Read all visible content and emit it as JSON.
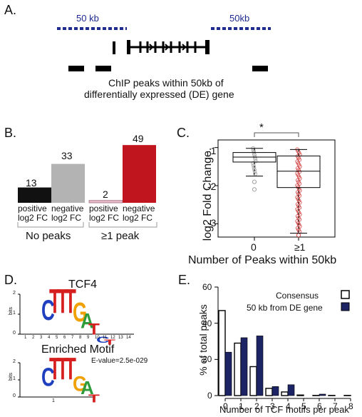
{
  "panels": {
    "a": {
      "letter": "A.",
      "left_window_label": "50 kb",
      "right_window_label": "50kb",
      "caption_line1": "ChIP peaks within 50kb of",
      "caption_line2": "differentially expressed (DE) gene"
    },
    "b": {
      "letter": "B.",
      "chart_data": {
        "type": "bar",
        "categories": [
          "positive log2 FC",
          "negative log2 FC",
          "positive log2 FC",
          "negative log2 FC"
        ],
        "values": [
          13,
          33,
          2,
          49
        ],
        "colors": [
          "#111111",
          "#b3b3b3",
          "#e6b9c9",
          "#c0141e"
        ],
        "groups": [
          "No peaks",
          "≥1 peak"
        ]
      },
      "bar_labels": [
        "13",
        "33",
        "2",
        "49"
      ],
      "cat1_line1": "positive",
      "cat1_line2": "log2 FC",
      "cat2_line1": "negative",
      "cat2_line2": "log2 FC",
      "cat3_line1": "positive",
      "cat3_line2": "log2 FC",
      "cat4_line1": "negative",
      "cat4_line2": "log2 FC",
      "group1": "No peaks",
      "group2": "≥1 peak"
    },
    "c": {
      "letter": "C.",
      "ylabel": "log2 Fold Change.",
      "xlabel": "Number of Peaks within 50kb",
      "x_ticks": [
        "0",
        "≥1"
      ],
      "y_ticks": [
        "-1",
        "-2",
        "-3"
      ],
      "significance": "*",
      "chart_data": {
        "type": "box",
        "categories": [
          "0",
          "≥1"
        ],
        "ylim": [
          -3.35,
          -0.8
        ],
        "boxes": [
          {
            "name": "0",
            "min": -1.75,
            "q1": -1.38,
            "median": -1.25,
            "q3": -1.13,
            "max": -1.02,
            "outliers": [
              -2.1,
              -1.9
            ],
            "color": "#999999"
          },
          {
            "name": "≥1",
            "min": -3.25,
            "q1": -2.05,
            "median": -1.62,
            "q3": -1.22,
            "max": -1.05,
            "outliers": [
              -3.3
            ],
            "color": "#d23c3c"
          }
        ]
      }
    },
    "d": {
      "letter": "D.",
      "motif1_title": "TCF4",
      "motif2_title": "Enriched Motif",
      "evalue": "E-value=2.5e-029",
      "bits_label": "bits",
      "motif1_letters": [
        "C",
        "T",
        "T",
        "T",
        "G",
        "A",
        "T",
        "C",
        "T"
      ],
      "motif2_letters": [
        "C",
        "T",
        "T",
        "T",
        "G",
        "A",
        "T"
      ],
      "motif1_positions": [
        "1",
        "2",
        "3",
        "4",
        "5",
        "6",
        "7",
        "8",
        "9",
        "10",
        "11",
        "12",
        "13",
        "14"
      ],
      "motif2_positions": [
        "1"
      ],
      "y_ticks": [
        "2",
        "1",
        "0"
      ],
      "letter_colors": {
        "A": "#2e9c3b",
        "C": "#1f3fbf",
        "G": "#f0a000",
        "T": "#d61f1f"
      }
    },
    "e": {
      "letter": "E.",
      "ylabel": "% of total peaks",
      "xlabel": "Number of TCF motifs per peak",
      "legend_consensus": "Consensus",
      "legend_de": "50 kb from DE gene",
      "y_ticks": [
        "0",
        "20",
        "40",
        "60"
      ],
      "x_ticks": [
        "0",
        "1",
        "2",
        "3",
        "4",
        "5",
        "6",
        "7",
        "8"
      ],
      "chart_data": {
        "type": "bar",
        "x": [
          0,
          1,
          2,
          3,
          4,
          5,
          6,
          7,
          8
        ],
        "ylim": [
          0,
          60
        ],
        "series": [
          {
            "name": "Consensus",
            "values": [
              47,
              29,
              16,
              4,
              2,
              0.3,
              0.1,
              0.1,
              0.1
            ],
            "color": "#ffffff"
          },
          {
            "name": "50 kb from DE gene",
            "values": [
              24,
              32,
              33,
              5,
              6,
              0,
              0.8,
              0,
              0
            ],
            "color": "#1c2466"
          }
        ]
      }
    }
  }
}
